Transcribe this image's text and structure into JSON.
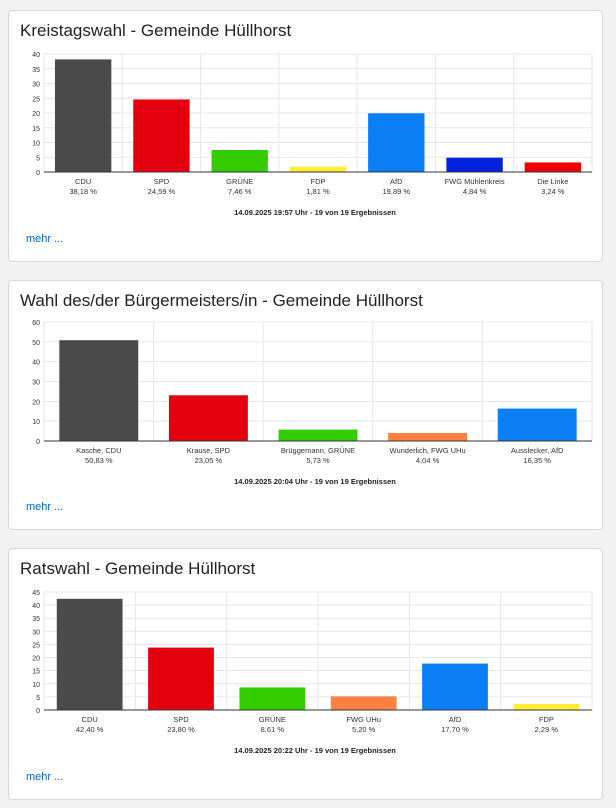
{
  "cards": [
    {
      "title": "Kreistagswahl - Gemeinde Hüllhorst",
      "more_label": "mehr ...",
      "chart_data": {
        "type": "bar",
        "categories": [
          "CDU",
          "SPD",
          "GRÜNE",
          "FDP",
          "AfD",
          "FWG Mühlenkreis",
          "Die Linke"
        ],
        "values": [
          38.18,
          24.59,
          7.46,
          1.81,
          19.89,
          4.84,
          3.24
        ],
        "value_labels": [
          "38,18 %",
          "24,59 %",
          "7,46 %",
          "1,81 %",
          "19,89 %",
          "4,84 %",
          "3,24 %"
        ],
        "colors": [
          "#4a4a4a",
          "#e3000f",
          "#33cc00",
          "#ffee33",
          "#0a7ff5",
          "#0022dd",
          "#ee0000"
        ],
        "ylim": [
          0,
          40
        ],
        "yticks": [
          0,
          5,
          10,
          15,
          20,
          25,
          30,
          35,
          40
        ],
        "footnote": "14.09.2025 19:57 Uhr - 19 von 19 Ergebnissen",
        "grid": true
      }
    },
    {
      "title": "Wahl des/der Bürgermeisters/in - Gemeinde Hüllhorst",
      "more_label": "mehr ...",
      "chart_data": {
        "type": "bar",
        "categories": [
          "Kasche, CDU",
          "Krause, SPD",
          "Brüggemann, GRÜNE",
          "Wunderlich, FWG UHu",
          "Ausslecker, AfD"
        ],
        "values": [
          50.83,
          23.05,
          5.73,
          4.04,
          16.35
        ],
        "value_labels": [
          "50,83 %",
          "23,05 %",
          "5,73 %",
          "4,04 %",
          "16,35 %"
        ],
        "colors": [
          "#4a4a4a",
          "#e3000f",
          "#33cc00",
          "#ff8040",
          "#0a7ff5"
        ],
        "ylim": [
          0,
          60
        ],
        "yticks": [
          0,
          10,
          20,
          30,
          40,
          50,
          60
        ],
        "footnote": "14.09.2025 20:04 Uhr - 19 von 19 Ergebnissen",
        "grid": true
      }
    },
    {
      "title": "Ratswahl - Gemeinde Hüllhorst",
      "more_label": "mehr ...",
      "chart_data": {
        "type": "bar",
        "categories": [
          "CDU",
          "SPD",
          "GRÜNE",
          "FWG UHu",
          "AfD",
          "FDP"
        ],
        "values": [
          42.4,
          23.8,
          8.61,
          5.2,
          17.7,
          2.29
        ],
        "value_labels": [
          "42,40 %",
          "23,80 %",
          "8,61 %",
          "5,20 %",
          "17,70 %",
          "2,29 %"
        ],
        "colors": [
          "#4a4a4a",
          "#e3000f",
          "#33cc00",
          "#ff8040",
          "#0a7ff5",
          "#ffee33"
        ],
        "ylim": [
          0,
          45
        ],
        "yticks": [
          0,
          5,
          10,
          15,
          20,
          25,
          30,
          35,
          40,
          45
        ],
        "footnote": "14.09.2025 20:22 Uhr - 19 von 19 Ergebnissen",
        "grid": true
      }
    }
  ]
}
